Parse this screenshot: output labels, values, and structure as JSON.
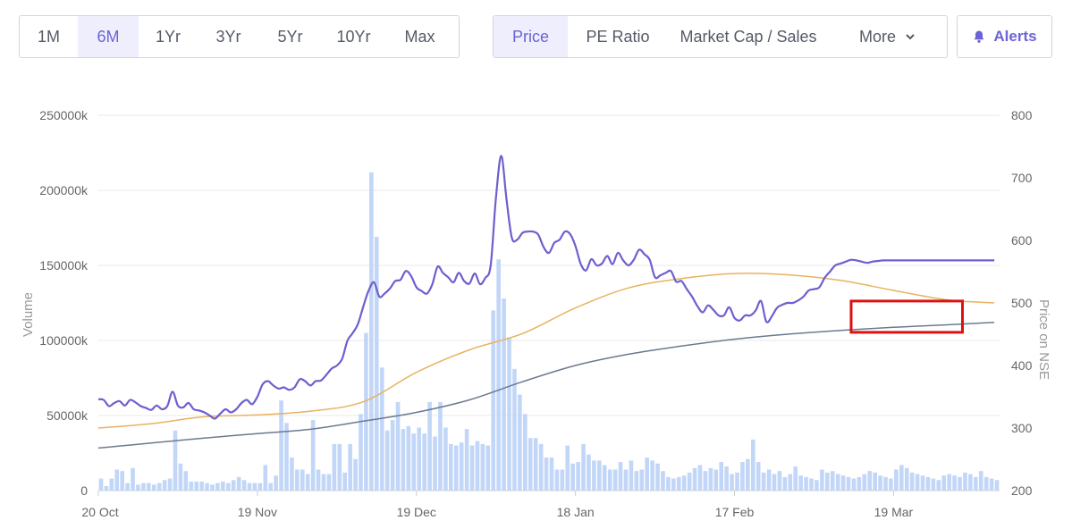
{
  "toolbar": {
    "ranges": [
      "1M",
      "6M",
      "1Yr",
      "3Yr",
      "5Yr",
      "10Yr",
      "Max"
    ],
    "active_range": "6M",
    "metrics": [
      "Price",
      "PE Ratio",
      "Market Cap / Sales",
      "More"
    ],
    "active_metric": "Price",
    "alerts_label": "Alerts",
    "icons": {
      "more": "chevron-down-icon",
      "alerts": "bell-icon"
    },
    "accent_color": "#6b63d6"
  },
  "chart_data": {
    "type": "line+bar",
    "x_tick_labels": [
      "20 Oct",
      "19 Nov",
      "19 Dec",
      "18 Jan",
      "17 Feb",
      "19 Mar"
    ],
    "y_left_label": "Volume",
    "y_left_ticks": [
      "0",
      "50000k",
      "100000k",
      "150000k",
      "200000k",
      "250000k"
    ],
    "y_left_range": [
      0,
      250000
    ],
    "y_right_label": "Price on NSE",
    "y_right_ticks": [
      "200",
      "300",
      "400",
      "500",
      "600",
      "700",
      "800"
    ],
    "y_right_range": [
      200,
      800
    ],
    "grid": true,
    "x_range_days": [
      0,
      170
    ],
    "volume_bars": {
      "color": "#c2d6f8",
      "days": [
        0,
        1,
        2,
        3,
        4,
        5,
        6,
        7,
        8,
        9,
        10,
        11,
        12,
        13,
        14,
        15,
        16,
        17,
        18,
        19,
        20,
        21,
        22,
        23,
        24,
        25,
        26,
        27,
        28,
        29,
        30,
        31,
        32,
        33,
        34,
        35,
        36,
        37,
        38,
        39,
        40,
        41,
        42,
        43,
        44,
        45,
        46,
        47,
        48,
        49,
        50,
        51,
        52,
        53,
        54,
        55,
        56,
        57,
        58,
        59,
        60,
        61,
        62,
        63,
        64,
        65,
        66,
        67,
        68,
        69,
        70,
        71,
        72,
        73,
        74,
        75,
        76,
        77,
        78,
        79,
        80,
        81,
        82,
        83,
        84,
        85,
        86,
        87,
        88,
        89,
        90,
        91,
        92,
        93,
        94,
        95,
        96,
        97,
        98,
        99,
        100,
        101,
        102,
        103,
        104,
        105,
        106,
        107,
        108,
        109,
        110,
        111,
        112,
        113,
        114,
        115,
        116,
        117,
        118,
        119,
        120,
        121,
        122,
        123,
        124,
        125,
        126,
        127,
        128,
        129,
        130,
        131,
        132,
        133,
        134,
        135,
        136,
        137,
        138,
        139,
        140,
        141,
        142,
        143,
        144,
        145,
        146,
        147,
        148,
        149,
        150,
        151,
        152,
        153,
        154,
        155,
        156,
        157,
        158,
        159,
        160,
        161,
        162,
        163,
        164,
        165,
        166,
        167,
        168,
        169
      ],
      "values": [
        8000,
        3000,
        8000,
        14000,
        13000,
        5000,
        15000,
        4000,
        5000,
        5000,
        4000,
        5000,
        7000,
        8000,
        40000,
        18000,
        13000,
        6000,
        6000,
        6000,
        5000,
        4000,
        5000,
        6000,
        5000,
        7000,
        9000,
        7000,
        5000,
        5000,
        5000,
        17000,
        5000,
        10000,
        60000,
        45000,
        22000,
        14000,
        14000,
        11000,
        47000,
        14000,
        11000,
        11000,
        31000,
        31000,
        12000,
        31000,
        21000,
        51000,
        105000,
        212000,
        169000,
        82000,
        40000,
        47000,
        59000,
        41000,
        43000,
        38000,
        42000,
        38000,
        59000,
        36000,
        59000,
        42000,
        31000,
        30000,
        32000,
        41000,
        30000,
        33000,
        31000,
        30000,
        120000,
        154000,
        128000,
        102000,
        81000,
        64000,
        51000,
        35000,
        35000,
        31000,
        22000,
        22000,
        14000,
        14000,
        30000,
        18000,
        19000,
        31000,
        24000,
        20000,
        20000,
        17000,
        14000,
        14000,
        19000,
        14000,
        20000,
        13000,
        14000,
        22000,
        20000,
        18000,
        13000,
        9000,
        8000,
        9000,
        10000,
        12000,
        15000,
        17000,
        13000,
        15000,
        14000,
        19000,
        16000,
        11000,
        12000,
        19000,
        21000,
        34000,
        19000,
        12000,
        14000,
        11000,
        13000,
        9000,
        11000,
        16000,
        10000,
        9000,
        8000,
        7000,
        14000,
        12000,
        13000,
        11000,
        10000,
        9000,
        8000,
        9000,
        11000,
        13000,
        12000,
        10000,
        9000,
        8000,
        14000,
        17000,
        15000,
        12000,
        11000,
        10000,
        9000,
        8000,
        7000,
        10000,
        11000,
        10000,
        9000,
        12000,
        11000,
        9000,
        13000,
        9000,
        8000,
        7000
      ]
    },
    "series": [
      {
        "color": "#6d5fcf",
        "axis": "right",
        "x": [
          0,
          1,
          2,
          3,
          4,
          5,
          6,
          7,
          8,
          9,
          10,
          11,
          12,
          13,
          14,
          15,
          16,
          17,
          18,
          19,
          20,
          21,
          22,
          23,
          24,
          25,
          26,
          27,
          28,
          29,
          30,
          31,
          32,
          33,
          34,
          35,
          36,
          37,
          38,
          39,
          40,
          41,
          42,
          43,
          44,
          45,
          46,
          47,
          48,
          49,
          50,
          51,
          52,
          53,
          54,
          55,
          56,
          57,
          58,
          59,
          60,
          61,
          62,
          63,
          64,
          65,
          66,
          67,
          68,
          69,
          70,
          71,
          72,
          73,
          74,
          75,
          76,
          77,
          78,
          79,
          80,
          81,
          82,
          83,
          84,
          85,
          86,
          87,
          88,
          89,
          90,
          91,
          92,
          93,
          94,
          95,
          96,
          97,
          98,
          99,
          100,
          101,
          102,
          103,
          104,
          105,
          106,
          107,
          108,
          109,
          110,
          111,
          112,
          113,
          114,
          115,
          116,
          117,
          118,
          119,
          120,
          121,
          122,
          123,
          124,
          125,
          126,
          127,
          128,
          129,
          130,
          131,
          132,
          133,
          134,
          135,
          136,
          137,
          138,
          139,
          140,
          141,
          142,
          143,
          144,
          145,
          146,
          147,
          148,
          149,
          150,
          151,
          152,
          153,
          154,
          155,
          156,
          157,
          158,
          159,
          160,
          161,
          162,
          163,
          164,
          165,
          166,
          167,
          168,
          169
        ],
        "y": [
          346,
          345,
          335,
          340,
          343,
          336,
          345,
          341,
          335,
          332,
          329,
          336,
          330,
          335,
          358,
          336,
          333,
          340,
          330,
          328,
          325,
          320,
          315,
          323,
          330,
          325,
          330,
          340,
          345,
          338,
          350,
          370,
          375,
          368,
          363,
          365,
          361,
          365,
          378,
          375,
          368,
          375,
          376,
          385,
          395,
          400,
          411,
          440,
          452,
          467,
          495,
          520,
          533,
          510,
          515,
          523,
          535,
          537,
          551,
          543,
          525,
          519,
          515,
          530,
          558,
          548,
          541,
          533,
          548,
          535,
          531,
          547,
          530,
          540,
          560,
          668,
          735,
          665,
          604,
          601,
          612,
          614,
          614,
          609,
          589,
          580,
          596,
          601,
          614,
          610,
          591,
          562,
          552,
          570,
          560,
          563,
          575,
          562,
          580,
          568,
          560,
          569,
          585,
          578,
          569,
          541,
          544,
          548,
          551,
          534,
          535,
          522,
          510,
          495,
          485,
          496,
          489,
          480,
          480,
          493,
          476,
          472,
          480,
          480,
          488,
          503,
          470,
          478,
          492,
          497,
          500,
          500,
          504,
          510,
          520,
          522,
          525,
          540,
          550,
          560,
          563,
          566,
          569,
          568,
          566,
          564,
          566,
          567,
          568,
          568,
          568,
          568,
          568,
          568,
          568,
          568,
          568,
          568,
          568,
          568,
          568,
          568,
          568,
          568,
          568,
          568,
          568,
          568,
          568,
          568
        ]
      },
      {
        "color": "#e8b35f",
        "axis": "right",
        "x": [
          0,
          10,
          20,
          30,
          40,
          50,
          60,
          70,
          80,
          90,
          100,
          110,
          120,
          130,
          140,
          150,
          160,
          169
        ],
        "y": [
          300,
          307,
          318,
          321,
          327,
          342,
          389,
          425,
          451,
          492,
          524,
          539,
          547,
          545,
          536,
          520,
          505,
          500
        ]
      },
      {
        "color": "#6b7a8f",
        "axis": "right",
        "x": [
          0,
          10,
          20,
          30,
          40,
          50,
          60,
          70,
          80,
          90,
          100,
          110,
          120,
          130,
          140,
          150,
          160,
          169
        ],
        "y": [
          268,
          276,
          284,
          291,
          298,
          311,
          325,
          345,
          374,
          400,
          418,
          431,
          442,
          450,
          456,
          461,
          465,
          469
        ]
      }
    ],
    "annotation": {
      "shape": "rectangle",
      "color": "#dd1111",
      "x_days": [
        142,
        163
      ],
      "y_price": [
        453,
        503
      ]
    }
  }
}
